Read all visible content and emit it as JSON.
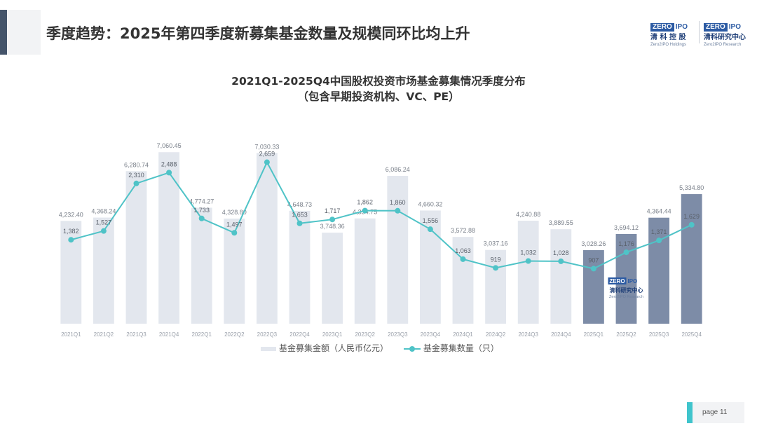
{
  "header": {
    "title": "季度趋势：2025年第四季度新募集基金数量及规模同环比均上升"
  },
  "logos": [
    {
      "zero": "ZERO",
      "ipo": "IPO",
      "cn": "清 科 控 股",
      "en": "Zero2IPO Holdings"
    },
    {
      "zero": "ZERO",
      "ipo": "IPO",
      "cn": "清科研究中心",
      "en": "Zero2IPO Research"
    }
  ],
  "watermark": {
    "zero": "ZERO",
    "ipo": "IPO",
    "cn": "清科研究中心",
    "en": "Zero2IPO Research"
  },
  "chart_data": {
    "type": "bar",
    "title": "2021Q1-2025Q4中国股权投资市场基金募集情况季度分布",
    "subtitle": "（包含早期投资机构、VC、PE）",
    "categories": [
      "2021Q1",
      "2021Q2",
      "2021Q3",
      "2021Q4",
      "2022Q1",
      "2022Q2",
      "2022Q3",
      "2022Q4",
      "2023Q1",
      "2023Q2",
      "2023Q3",
      "2023Q4",
      "2024Q1",
      "2024Q2",
      "2024Q3",
      "2024Q4",
      "2025Q1",
      "2025Q2",
      "2025Q3",
      "2025Q4"
    ],
    "series": [
      {
        "name": "基金募集金额（人民币亿元）",
        "type": "bar",
        "values": [
          4232.4,
          4368.24,
          6280.74,
          7060.45,
          4774.27,
          4328.8,
          7030.33,
          4648.73,
          3748.36,
          4334.75,
          6086.24,
          4660.32,
          3572.88,
          3037.16,
          4240.88,
          3889.55,
          3028.26,
          3694.12,
          4364.44,
          5334.8
        ],
        "labels": [
          "4,232.40",
          "4,368.24",
          "6,280.74",
          "7,060.45",
          "4,774.27",
          "4,328.80",
          "7,030.33",
          "4,648.73",
          "3,748.36",
          "4,334.75",
          "6,086.24",
          "4,660.32",
          "3,572.88",
          "3,037.16",
          "4,240.88",
          "3,889.55",
          "3,028.26",
          "3,694.12",
          "4,364.44",
          "5,334.80"
        ]
      },
      {
        "name": "基金募集数量（只）",
        "type": "line",
        "values": [
          1382,
          1527,
          2310,
          2488,
          1733,
          1497,
          2659,
          1653,
          1717,
          1862,
          1860,
          1556,
          1063,
          919,
          1032,
          1028,
          907,
          1176,
          1371,
          1629
        ],
        "labels": [
          "1,382",
          "1,527",
          "2,310",
          "2,488",
          "1,733",
          "1,497",
          "2,659",
          "1,653",
          "1,717",
          "1,862",
          "1,860",
          "1,556",
          "1,063",
          "919",
          "1,032",
          "1,028",
          "907",
          "1,176",
          "1,371",
          "1,629"
        ]
      }
    ],
    "ylim_bar": [
      0,
      9000
    ],
    "ylim_line": [
      0,
      3600
    ],
    "highlight_from_index": 16,
    "colors": {
      "bar": "#e3e7ee",
      "bar_highlight": "#7d8ca7",
      "line": "#4fc3c7",
      "axis_text": "#9aa0aa"
    },
    "legend": "bottom"
  },
  "footer": {
    "page": "page   11"
  }
}
